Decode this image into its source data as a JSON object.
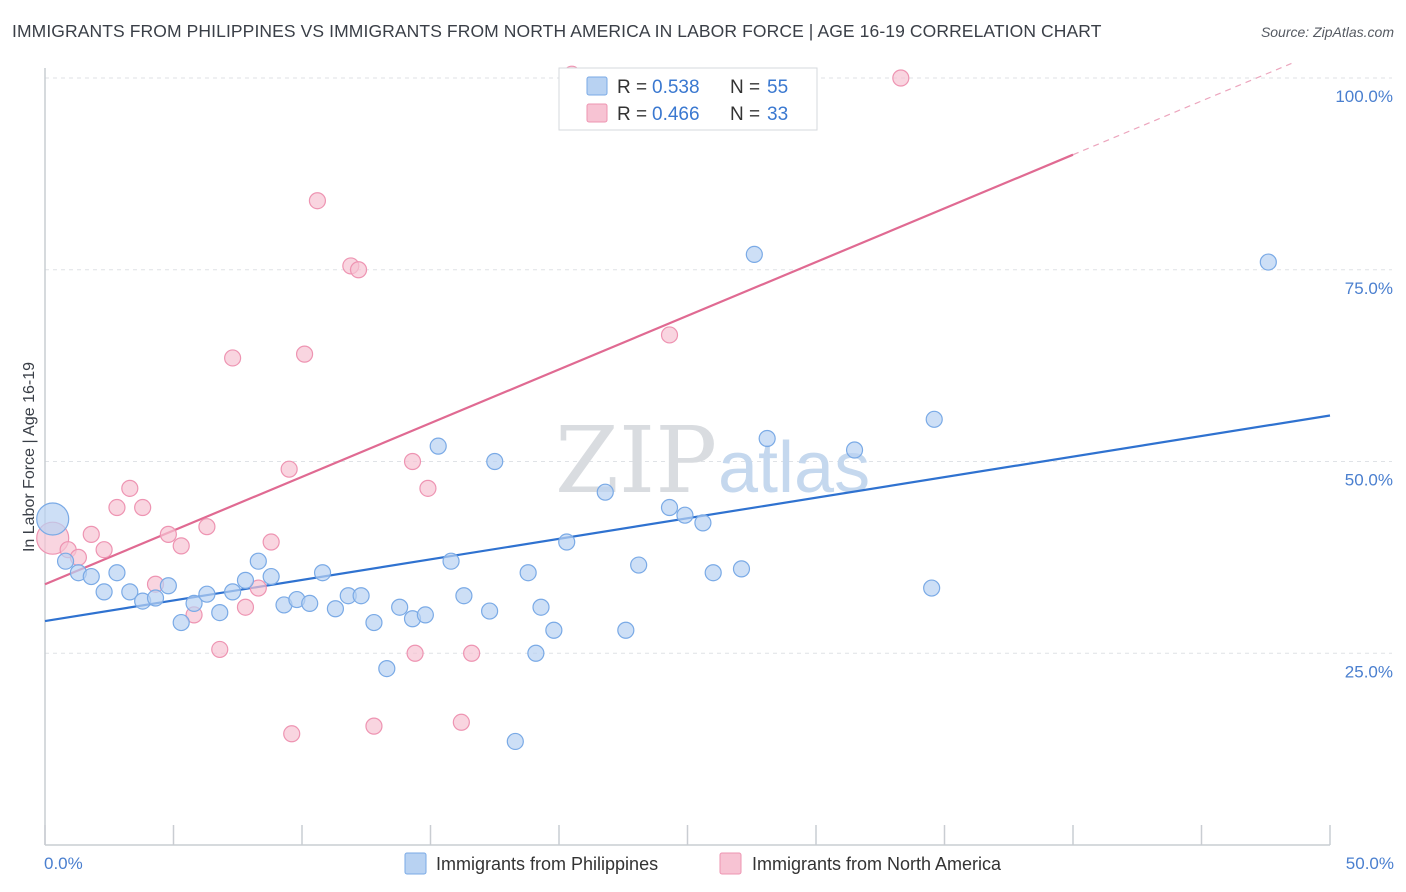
{
  "title": "IMMIGRANTS FROM PHILIPPINES VS IMMIGRANTS FROM NORTH AMERICA IN LABOR FORCE | AGE 16-19 CORRELATION CHART",
  "source": "Source: ZipAtlas.com",
  "watermark": {
    "zip": "ZIP",
    "atlas": "atlas"
  },
  "colors": {
    "blue_fill": "#b8d2f2",
    "blue_stroke": "#7aaae6",
    "blue_line": "#2f72d0",
    "pink_fill": "#f7c3d3",
    "pink_stroke": "#ee94b2",
    "pink_line": "#e06a92",
    "grid": "#dfe2e6",
    "tick_label": "#4a7fcf"
  },
  "legend": {
    "rows": [
      {
        "r_label": "R =",
        "r_value": "0.538",
        "n_label": "N =",
        "n_value": "55"
      },
      {
        "r_label": "R =",
        "r_value": "0.466",
        "n_label": "N =",
        "n_value": "33"
      }
    ]
  },
  "chart_data": {
    "type": "scatter",
    "title": "IMMIGRANTS FROM PHILIPPINES VS IMMIGRANTS FROM NORTH AMERICA IN LABOR FORCE | AGE 16-19 CORRELATION CHART",
    "xlabel": "",
    "ylabel": "In Labor Force | Age 16-19",
    "xlim": [
      0,
      50
    ],
    "ylim": [
      0,
      102
    ],
    "x_tick_labels": [
      "0.0%",
      "50.0%"
    ],
    "y_ticks": [
      25,
      50,
      75,
      100
    ],
    "y_tick_labels": [
      "25.0%",
      "50.0%",
      "75.0%",
      "100.0%"
    ],
    "grid": true,
    "legend_position": "top-center",
    "series": [
      {
        "name": "Immigrants from Philippines",
        "color": "#7aaae6",
        "trend": {
          "x": [
            0,
            50
          ],
          "y": [
            29.2,
            56.0
          ]
        },
        "points": [
          [
            0.3,
            42.5
          ],
          [
            0.8,
            37.0
          ],
          [
            1.3,
            35.5
          ],
          [
            1.8,
            35.0
          ],
          [
            2.3,
            33.0
          ],
          [
            2.8,
            35.5
          ],
          [
            3.3,
            33.0
          ],
          [
            3.8,
            31.8
          ],
          [
            4.3,
            32.2
          ],
          [
            4.8,
            33.8
          ],
          [
            5.3,
            29.0
          ],
          [
            5.8,
            31.5
          ],
          [
            6.3,
            32.7
          ],
          [
            6.8,
            30.3
          ],
          [
            7.3,
            33.0
          ],
          [
            7.8,
            34.5
          ],
          [
            8.3,
            37.0
          ],
          [
            8.8,
            35.0
          ],
          [
            9.3,
            31.3
          ],
          [
            9.8,
            32.0
          ],
          [
            10.3,
            31.5
          ],
          [
            10.8,
            35.5
          ],
          [
            11.3,
            30.8
          ],
          [
            11.8,
            32.5
          ],
          [
            12.3,
            32.5
          ],
          [
            12.8,
            29.0
          ],
          [
            13.3,
            23.0
          ],
          [
            13.8,
            31.0
          ],
          [
            14.3,
            29.5
          ],
          [
            14.8,
            30.0
          ],
          [
            15.3,
            52.0
          ],
          [
            15.8,
            37.0
          ],
          [
            16.3,
            32.5
          ],
          [
            17.3,
            30.5
          ],
          [
            17.5,
            50.0
          ],
          [
            18.3,
            13.5
          ],
          [
            18.8,
            35.5
          ],
          [
            19.1,
            25.0
          ],
          [
            19.3,
            31.0
          ],
          [
            19.8,
            28.0
          ],
          [
            20.3,
            39.5
          ],
          [
            21.8,
            46.0
          ],
          [
            22.6,
            28.0
          ],
          [
            23.1,
            36.5
          ],
          [
            24.3,
            44.0
          ],
          [
            24.9,
            43.0
          ],
          [
            25.6,
            42.0
          ],
          [
            26.0,
            35.5
          ],
          [
            27.1,
            36.0
          ],
          [
            27.6,
            77.0
          ],
          [
            28.1,
            53.0
          ],
          [
            31.5,
            51.5
          ],
          [
            34.5,
            33.5
          ],
          [
            34.6,
            55.5
          ],
          [
            47.6,
            76.0
          ]
        ]
      },
      {
        "name": "Immigrants from North America",
        "color": "#ee94b2",
        "trend": {
          "x": [
            0,
            40
          ],
          "y": [
            34.0,
            90.0
          ]
        },
        "points": [
          [
            0.3,
            40.0
          ],
          [
            0.9,
            38.5
          ],
          [
            1.3,
            37.5
          ],
          [
            1.8,
            40.5
          ],
          [
            2.3,
            38.5
          ],
          [
            2.8,
            44.0
          ],
          [
            3.3,
            46.5
          ],
          [
            3.8,
            44.0
          ],
          [
            4.3,
            34.0
          ],
          [
            4.8,
            40.5
          ],
          [
            5.3,
            39.0
          ],
          [
            5.8,
            30.0
          ],
          [
            6.3,
            41.5
          ],
          [
            6.8,
            25.5
          ],
          [
            7.3,
            63.5
          ],
          [
            7.8,
            31.0
          ],
          [
            8.3,
            33.5
          ],
          [
            8.8,
            39.5
          ],
          [
            9.5,
            49.0
          ],
          [
            9.6,
            14.5
          ],
          [
            10.1,
            64.0
          ],
          [
            10.6,
            84.0
          ],
          [
            11.9,
            75.5
          ],
          [
            12.2,
            75.0
          ],
          [
            12.8,
            15.5
          ],
          [
            14.3,
            50.0
          ],
          [
            14.4,
            25.0
          ],
          [
            14.9,
            46.5
          ],
          [
            16.2,
            16.0
          ],
          [
            16.6,
            25.0
          ],
          [
            20.5,
            100.5
          ],
          [
            24.3,
            66.5
          ],
          [
            33.3,
            100.0
          ]
        ]
      }
    ]
  }
}
